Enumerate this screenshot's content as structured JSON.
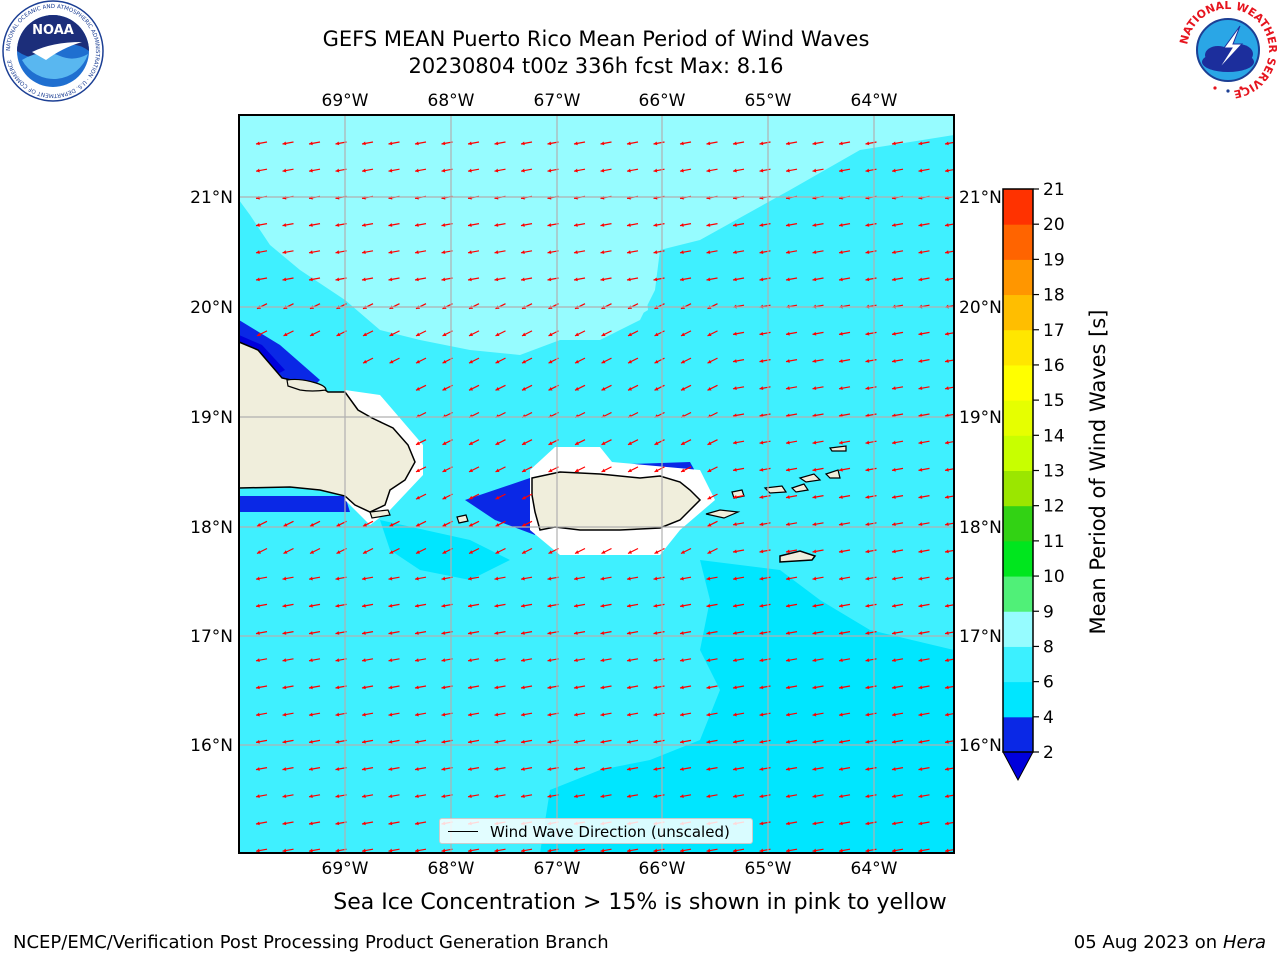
{
  "title_line1": "GEFS MEAN Puerto Rico Mean Period of Wind Waves",
  "title_line2": "20230804 t00z 336h fcst   Max: 8.16",
  "lon_labels": [
    "69°W",
    "68°W",
    "67°W",
    "66°W",
    "65°W",
    "64°W"
  ],
  "lat_labels": [
    "21°N",
    "20°N",
    "19°N",
    "18°N",
    "17°N",
    "16°N"
  ],
  "colorbar": {
    "label": "Mean Period of Wind Waves [s]",
    "ticks": [
      "2",
      "4",
      "6",
      "8",
      "9",
      "10",
      "11",
      "12",
      "13",
      "14",
      "15",
      "16",
      "17",
      "18",
      "19",
      "20",
      "21"
    ],
    "colors": [
      "#0a28e6",
      "#00e6ff",
      "#3cf0ff",
      "#96fcff",
      "#50f078",
      "#00e61e",
      "#32d214",
      "#9be600",
      "#c8ff00",
      "#e6ff00",
      "#ffff00",
      "#ffe600",
      "#ffbe00",
      "#ff9600",
      "#ff6400",
      "#ff3200"
    ],
    "under_color": "#0000dc",
    "over_color": "#ff0000"
  },
  "legend_text": "Wind Wave Direction (unscaled)",
  "subcaption": "Sea Ice Concentration > 15% is shown in pink to yellow",
  "footer_left": "NCEP/EMC/Verification Post Processing Product Generation Branch",
  "footer_right_date": "05 Aug 2023 on",
  "footer_right_host": "Hera",
  "logos": {
    "noaa_text": "NOAA",
    "noaa_ring": "NATIONAL OCEANIC AND ATMOSPHERIC ADMINISTRATION · U.S. DEPARTMENT OF COMMERCE",
    "nws_ring": "NATIONAL WEATHER SERVICE"
  },
  "colors": {
    "land": "#f0eedc",
    "ocean": "#3ff0ff",
    "arrow": "#ff0000",
    "grid": "#b0b0b0"
  }
}
